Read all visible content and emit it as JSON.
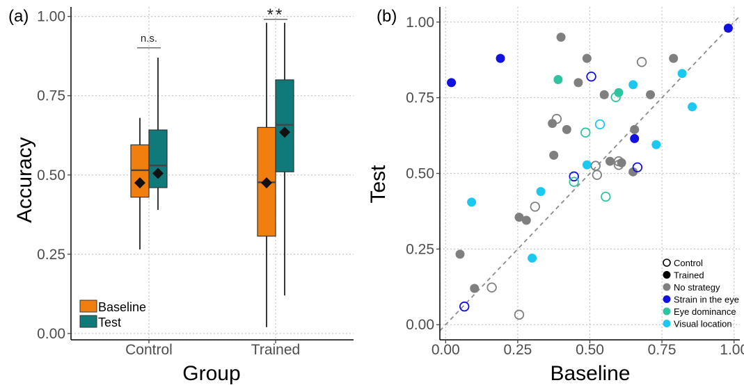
{
  "chart_data": [
    {
      "type": "box",
      "panel_label": "(a)",
      "xlabel": "Group",
      "ylabel": "Accuracy",
      "ylim": [
        -0.02,
        1.03
      ],
      "yticks": [
        0.0,
        0.25,
        0.5,
        0.75,
        1.0
      ],
      "ytick_labels": [
        "0.00",
        "0.25",
        "0.50",
        "0.75",
        "1.00"
      ],
      "categories": [
        "Control",
        "Trained"
      ],
      "grid": true,
      "legend_position": "bottom-left",
      "series": [
        {
          "name": "Baseline",
          "color": "#F07F10",
          "boxes": [
            {
              "min": 0.265,
              "q1": 0.43,
              "median": 0.515,
              "q3": 0.595,
              "max": 0.68,
              "mean": 0.475
            },
            {
              "min": 0.02,
              "q1": 0.307,
              "median": 0.477,
              "q3": 0.65,
              "max": 0.98,
              "mean": 0.475
            }
          ]
        },
        {
          "name": "Test",
          "color": "#107A7A",
          "boxes": [
            {
              "min": 0.39,
              "q1": 0.46,
              "median": 0.53,
              "q3": 0.642,
              "max": 0.87,
              "mean": 0.505
            },
            {
              "min": 0.12,
              "q1": 0.51,
              "median": 0.658,
              "q3": 0.8,
              "max": 0.98,
              "mean": 0.635
            }
          ]
        }
      ],
      "annotations": [
        {
          "category": "Control",
          "text": "n.s.",
          "y": 0.925
        },
        {
          "category": "Trained",
          "text": "**",
          "y": 1.015
        }
      ]
    },
    {
      "type": "scatter",
      "panel_label": "(b)",
      "xlabel": "Baseline",
      "ylabel": "Test",
      "xlim": [
        -0.02,
        1.02
      ],
      "ylim": [
        -0.05,
        1.05
      ],
      "xticks": [
        0.0,
        0.25,
        0.5,
        0.75,
        1.0
      ],
      "xtick_labels": [
        "0.00",
        "0.25",
        "0.50",
        "0.75",
        "1.00"
      ],
      "yticks": [
        0.0,
        0.25,
        0.5,
        0.75,
        1.0
      ],
      "ytick_labels": [
        "0.00",
        "0.25",
        "0.50",
        "0.75",
        "1.00"
      ],
      "reference_line": "y = x",
      "grid": true,
      "legend_position": "bottom-right",
      "legend": [
        {
          "label": "Control",
          "marker": "open"
        },
        {
          "label": "Trained",
          "marker": "filled"
        },
        {
          "label": "No strategy",
          "color": "#7F7F7F"
        },
        {
          "label": "Strain in the eye",
          "color": "#1010E0"
        },
        {
          "label": "Eye dominance",
          "color": "#2EC4A0"
        },
        {
          "label": "Visual location",
          "color": "#1AC8F0"
        }
      ],
      "points": [
        {
          "x": 0.4,
          "y": 0.95,
          "group": "Trained",
          "strategy": "No strategy"
        },
        {
          "x": 0.49,
          "y": 0.88,
          "group": "Trained",
          "strategy": "No strategy"
        },
        {
          "x": 0.79,
          "y": 0.88,
          "group": "Trained",
          "strategy": "No strategy"
        },
        {
          "x": 0.46,
          "y": 0.8,
          "group": "Trained",
          "strategy": "No strategy"
        },
        {
          "x": 0.55,
          "y": 0.76,
          "group": "Trained",
          "strategy": "No strategy"
        },
        {
          "x": 0.71,
          "y": 0.76,
          "group": "Trained",
          "strategy": "No strategy"
        },
        {
          "x": 0.37,
          "y": 0.665,
          "group": "Trained",
          "strategy": "No strategy"
        },
        {
          "x": 0.42,
          "y": 0.645,
          "group": "Trained",
          "strategy": "No strategy"
        },
        {
          "x": 0.655,
          "y": 0.645,
          "group": "Trained",
          "strategy": "No strategy"
        },
        {
          "x": 0.375,
          "y": 0.56,
          "group": "Trained",
          "strategy": "No strategy"
        },
        {
          "x": 0.57,
          "y": 0.54,
          "group": "Trained",
          "strategy": "No strategy"
        },
        {
          "x": 0.61,
          "y": 0.535,
          "group": "Trained",
          "strategy": "No strategy"
        },
        {
          "x": 0.65,
          "y": 0.505,
          "group": "Trained",
          "strategy": "No strategy"
        },
        {
          "x": 0.255,
          "y": 0.355,
          "group": "Trained",
          "strategy": "No strategy"
        },
        {
          "x": 0.28,
          "y": 0.345,
          "group": "Trained",
          "strategy": "No strategy"
        },
        {
          "x": 0.05,
          "y": 0.233,
          "group": "Trained",
          "strategy": "No strategy"
        },
        {
          "x": 0.1,
          "y": 0.12,
          "group": "Trained",
          "strategy": "No strategy"
        },
        {
          "x": 0.02,
          "y": 0.8,
          "group": "Trained",
          "strategy": "Strain in the eye"
        },
        {
          "x": 0.19,
          "y": 0.88,
          "group": "Trained",
          "strategy": "Strain in the eye"
        },
        {
          "x": 0.98,
          "y": 0.98,
          "group": "Trained",
          "strategy": "Strain in the eye"
        },
        {
          "x": 0.655,
          "y": 0.615,
          "group": "Trained",
          "strategy": "Strain in the eye"
        },
        {
          "x": 0.39,
          "y": 0.81,
          "group": "Trained",
          "strategy": "Eye dominance"
        },
        {
          "x": 0.6,
          "y": 0.767,
          "group": "Trained",
          "strategy": "Eye dominance"
        },
        {
          "x": 0.65,
          "y": 0.793,
          "group": "Trained",
          "strategy": "Visual location"
        },
        {
          "x": 0.82,
          "y": 0.83,
          "group": "Trained",
          "strategy": "Visual location"
        },
        {
          "x": 0.855,
          "y": 0.72,
          "group": "Trained",
          "strategy": "Visual location"
        },
        {
          "x": 0.73,
          "y": 0.595,
          "group": "Trained",
          "strategy": "Visual location"
        },
        {
          "x": 0.49,
          "y": 0.528,
          "group": "Trained",
          "strategy": "Visual location"
        },
        {
          "x": 0.33,
          "y": 0.44,
          "group": "Trained",
          "strategy": "Visual location"
        },
        {
          "x": 0.09,
          "y": 0.405,
          "group": "Trained",
          "strategy": "Visual location"
        },
        {
          "x": 0.3,
          "y": 0.22,
          "group": "Trained",
          "strategy": "Visual location"
        },
        {
          "x": 0.68,
          "y": 0.868,
          "group": "Control",
          "strategy": "No strategy"
        },
        {
          "x": 0.385,
          "y": 0.68,
          "group": "Control",
          "strategy": "No strategy"
        },
        {
          "x": 0.6,
          "y": 0.54,
          "group": "Control",
          "strategy": "No strategy"
        },
        {
          "x": 0.6,
          "y": 0.528,
          "group": "Control",
          "strategy": "No strategy"
        },
        {
          "x": 0.52,
          "y": 0.525,
          "group": "Control",
          "strategy": "No strategy"
        },
        {
          "x": 0.525,
          "y": 0.495,
          "group": "Control",
          "strategy": "No strategy"
        },
        {
          "x": 0.31,
          "y": 0.39,
          "group": "Control",
          "strategy": "No strategy"
        },
        {
          "x": 0.16,
          "y": 0.123,
          "group": "Control",
          "strategy": "No strategy"
        },
        {
          "x": 0.255,
          "y": 0.033,
          "group": "Control",
          "strategy": "No strategy"
        },
        {
          "x": 0.505,
          "y": 0.82,
          "group": "Control",
          "strategy": "Strain in the eye"
        },
        {
          "x": 0.665,
          "y": 0.52,
          "group": "Control",
          "strategy": "Strain in the eye"
        },
        {
          "x": 0.445,
          "y": 0.49,
          "group": "Control",
          "strategy": "Strain in the eye"
        },
        {
          "x": 0.065,
          "y": 0.06,
          "group": "Control",
          "strategy": "Strain in the eye"
        },
        {
          "x": 0.59,
          "y": 0.752,
          "group": "Control",
          "strategy": "Eye dominance"
        },
        {
          "x": 0.485,
          "y": 0.635,
          "group": "Control",
          "strategy": "Eye dominance"
        },
        {
          "x": 0.445,
          "y": 0.472,
          "group": "Control",
          "strategy": "Eye dominance"
        },
        {
          "x": 0.555,
          "y": 0.423,
          "group": "Control",
          "strategy": "Eye dominance"
        },
        {
          "x": 0.535,
          "y": 0.662,
          "group": "Control",
          "strategy": "Visual location"
        }
      ]
    }
  ]
}
